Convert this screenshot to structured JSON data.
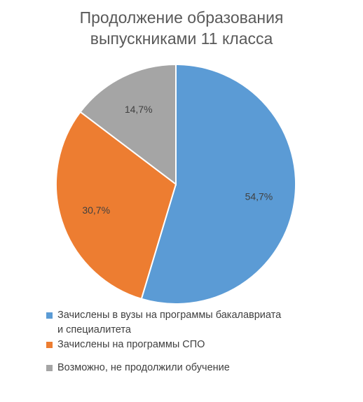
{
  "chart_data": {
    "type": "pie",
    "title_lines": [
      "Продолжение образования",
      "выпускниками 11 класса"
    ],
    "title": "Продолжение образования выпускниками 11 класса",
    "categories": [
      "Зачислены в вузы на программы бакалавриата и специалитета",
      "Зачислены на программы СПО",
      "Возможно, не продолжили обучение"
    ],
    "values": [
      54.7,
      30.7,
      14.7
    ],
    "data_labels": [
      "54,7%",
      "30,7%",
      "14,7%"
    ],
    "colors": [
      "#5B9BD5",
      "#ED7D31",
      "#A5A5A5"
    ],
    "legend_position": "bottom",
    "legend": [
      {
        "line1": "Зачислены в вузы на программы бакалавриата",
        "line2": "и специалитета"
      },
      {
        "line1": "Зачислены на программы СПО",
        "line2": ""
      },
      {
        "line1": "Возможно, не продолжили обучение",
        "line2": ""
      }
    ]
  }
}
